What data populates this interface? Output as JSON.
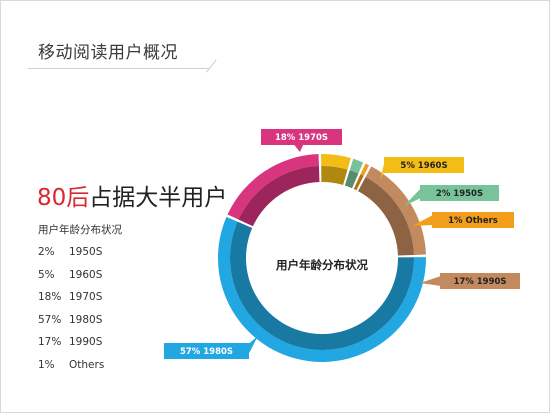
{
  "slide": {
    "title": "移动阅读用户概况",
    "headline_accent": "80后",
    "headline_rest": "占据大半用户"
  },
  "distribution": {
    "heading": "用户年龄分布状况",
    "rows": [
      {
        "pct": "2%",
        "label": "1950S"
      },
      {
        "pct": "5%",
        "label": "1960S"
      },
      {
        "pct": "18%",
        "label": "1970S"
      },
      {
        "pct": "57%",
        "label": "1980S"
      },
      {
        "pct": "17%",
        "label": "1990S"
      },
      {
        "pct": "1%",
        "label": "Others"
      }
    ]
  },
  "chart_data": {
    "type": "pie",
    "title": "用户年龄分布状况",
    "slices": [
      {
        "label": "1970S",
        "value": 18,
        "callout": "18%  1970S",
        "color": "#d8357e",
        "text_color": "#ffffff"
      },
      {
        "label": "1960S",
        "value": 5,
        "callout": "5%  1960S",
        "color": "#f4bd16",
        "text_color": "#222222"
      },
      {
        "label": "1950S",
        "value": 2,
        "callout": "2%  1950S",
        "color": "#79c39a",
        "text_color": "#222222"
      },
      {
        "label": "Others",
        "value": 1,
        "callout": "1%  Others",
        "color": "#f29d1c",
        "text_color": "#222222"
      },
      {
        "label": "1990S",
        "value": 17,
        "callout": "17%  1990S",
        "color": "#c48a5f",
        "text_color": "#222222"
      },
      {
        "label": "1980S",
        "value": 57,
        "callout": "57%  1980S",
        "color": "#21a8e3",
        "text_color": "#ffffff"
      }
    ],
    "legend": "none"
  }
}
